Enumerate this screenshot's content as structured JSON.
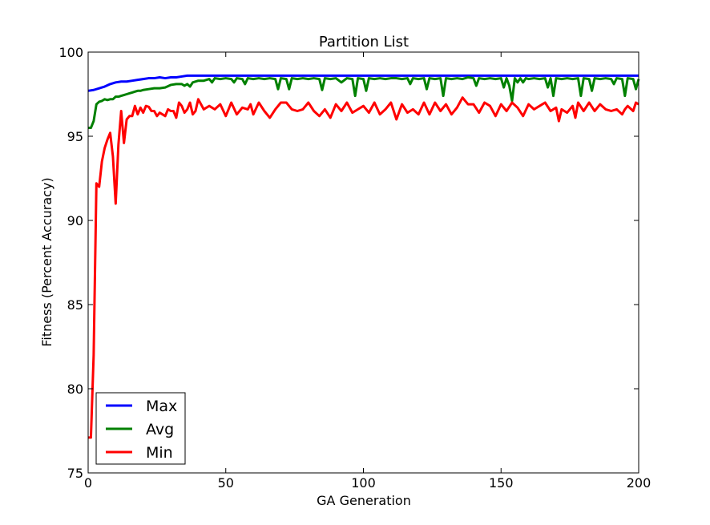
{
  "chart_data": {
    "type": "line",
    "title": "Partition List",
    "xlabel": "GA Generation",
    "ylabel": "Fitness (Percent Accuracy)",
    "xlim": [
      0,
      200
    ],
    "ylim": [
      75,
      100
    ],
    "xticks": [
      0,
      50,
      100,
      150,
      200
    ],
    "yticks": [
      75,
      80,
      85,
      90,
      95,
      100
    ],
    "grid": false,
    "legend": {
      "placement": "lower-left",
      "entries": [
        "Max",
        "Avg",
        "Min"
      ]
    },
    "series": [
      {
        "name": "Max",
        "color": "#0000ff",
        "x": [
          0,
          2,
          4,
          6,
          8,
          10,
          12,
          14,
          16,
          18,
          20,
          22,
          24,
          26,
          28,
          30,
          32,
          34,
          36,
          40,
          60,
          80,
          100,
          120,
          140,
          160,
          180,
          200
        ],
        "y": [
          97.7,
          97.75,
          97.85,
          97.95,
          98.1,
          98.2,
          98.25,
          98.25,
          98.3,
          98.35,
          98.4,
          98.45,
          98.45,
          98.5,
          98.45,
          98.5,
          98.5,
          98.55,
          98.6,
          98.6,
          98.6,
          98.6,
          98.6,
          98.6,
          98.6,
          98.6,
          98.6,
          98.6
        ]
      },
      {
        "name": "Avg",
        "color": "#008000",
        "x": [
          0,
          1,
          2,
          3,
          4,
          5,
          6,
          7,
          8,
          9,
          10,
          11,
          12,
          13,
          14,
          15,
          16,
          17,
          18,
          19,
          20,
          22,
          24,
          26,
          28,
          30,
          32,
          34,
          35,
          36,
          37,
          38,
          40,
          42,
          44,
          45,
          46,
          48,
          50,
          52,
          53,
          54,
          56,
          57,
          58,
          60,
          62,
          64,
          66,
          68,
          69,
          70,
          72,
          73,
          74,
          76,
          78,
          80,
          82,
          84,
          85,
          86,
          88,
          90,
          92,
          94,
          96,
          97,
          98,
          100,
          101,
          102,
          104,
          106,
          108,
          110,
          112,
          114,
          116,
          117,
          118,
          120,
          122,
          123,
          124,
          126,
          128,
          129,
          130,
          132,
          134,
          136,
          138,
          140,
          141,
          142,
          144,
          146,
          148,
          150,
          151,
          152,
          153,
          154,
          155,
          156,
          157,
          158,
          159,
          160,
          162,
          164,
          166,
          167,
          168,
          169,
          170,
          172,
          174,
          176,
          178,
          179,
          180,
          182,
          183,
          184,
          186,
          188,
          190,
          191,
          192,
          194,
          195,
          196,
          198,
          199,
          200
        ],
        "y": [
          95.5,
          95.5,
          95.9,
          96.9,
          97.05,
          97.1,
          97.2,
          97.15,
          97.2,
          97.2,
          97.35,
          97.35,
          97.4,
          97.45,
          97.5,
          97.55,
          97.6,
          97.65,
          97.7,
          97.7,
          97.75,
          97.8,
          97.85,
          97.85,
          97.9,
          98.05,
          98.1,
          98.1,
          98.0,
          98.1,
          97.95,
          98.2,
          98.3,
          98.3,
          98.4,
          98.2,
          98.45,
          98.4,
          98.45,
          98.4,
          98.2,
          98.45,
          98.4,
          98.1,
          98.45,
          98.4,
          98.45,
          98.4,
          98.45,
          98.4,
          97.8,
          98.45,
          98.4,
          97.8,
          98.45,
          98.4,
          98.45,
          98.4,
          98.45,
          98.4,
          97.75,
          98.45,
          98.4,
          98.45,
          98.2,
          98.45,
          98.4,
          97.4,
          98.45,
          98.4,
          97.7,
          98.45,
          98.4,
          98.45,
          98.4,
          98.45,
          98.45,
          98.4,
          98.45,
          98.1,
          98.45,
          98.4,
          98.45,
          97.8,
          98.45,
          98.4,
          98.45,
          97.4,
          98.45,
          98.4,
          98.45,
          98.4,
          98.5,
          98.45,
          98.0,
          98.45,
          98.4,
          98.45,
          98.4,
          98.45,
          97.9,
          98.45,
          98.0,
          97.1,
          98.45,
          98.2,
          98.45,
          98.2,
          98.45,
          98.4,
          98.45,
          98.4,
          98.45,
          97.9,
          98.45,
          97.4,
          98.45,
          98.4,
          98.45,
          98.4,
          98.45,
          97.4,
          98.45,
          98.4,
          97.7,
          98.45,
          98.4,
          98.45,
          98.4,
          98.1,
          98.45,
          98.4,
          97.4,
          98.45,
          98.4,
          97.8,
          98.4
        ]
      },
      {
        "name": "Min",
        "color": "#ff0000",
        "x": [
          0,
          1,
          2,
          3,
          4,
          5,
          6,
          7,
          8,
          9,
          10,
          11,
          12,
          13,
          14,
          15,
          16,
          17,
          18,
          19,
          20,
          21,
          22,
          23,
          24,
          25,
          26,
          27,
          28,
          29,
          30,
          31,
          32,
          33,
          34,
          35,
          36,
          37,
          38,
          39,
          40,
          42,
          44,
          46,
          48,
          50,
          51,
          52,
          54,
          56,
          58,
          59,
          60,
          62,
          64,
          66,
          68,
          70,
          72,
          74,
          76,
          78,
          80,
          82,
          84,
          86,
          88,
          90,
          92,
          94,
          96,
          98,
          100,
          102,
          104,
          106,
          108,
          110,
          112,
          114,
          116,
          118,
          120,
          122,
          124,
          126,
          128,
          130,
          132,
          134,
          136,
          138,
          140,
          142,
          144,
          146,
          148,
          150,
          152,
          154,
          156,
          158,
          160,
          162,
          164,
          166,
          168,
          170,
          171,
          172,
          174,
          176,
          177,
          178,
          180,
          182,
          184,
          186,
          188,
          190,
          192,
          194,
          195,
          196,
          198,
          199,
          200
        ],
        "y": [
          77.1,
          77.1,
          82.0,
          92.2,
          92.0,
          93.5,
          94.3,
          94.8,
          95.2,
          93.8,
          91.0,
          94.5,
          96.5,
          94.6,
          96.0,
          96.2,
          96.2,
          96.8,
          96.3,
          96.7,
          96.4,
          96.8,
          96.75,
          96.5,
          96.5,
          96.2,
          96.4,
          96.3,
          96.2,
          96.6,
          96.5,
          96.5,
          96.1,
          97.0,
          96.8,
          96.4,
          96.6,
          97.0,
          96.3,
          96.5,
          97.2,
          96.6,
          96.8,
          96.6,
          96.9,
          96.2,
          96.6,
          97.0,
          96.3,
          96.7,
          96.6,
          96.9,
          96.3,
          97.0,
          96.5,
          96.1,
          96.6,
          97.0,
          97.0,
          96.6,
          96.5,
          96.6,
          97.0,
          96.5,
          96.2,
          96.6,
          96.1,
          96.9,
          96.5,
          97.0,
          96.4,
          96.6,
          96.8,
          96.4,
          97.0,
          96.3,
          96.6,
          97.0,
          96.0,
          96.9,
          96.4,
          96.6,
          96.3,
          97.0,
          96.3,
          97.0,
          96.5,
          96.9,
          96.3,
          96.7,
          97.3,
          96.9,
          96.9,
          96.4,
          97.0,
          96.8,
          96.2,
          96.9,
          96.5,
          97.0,
          96.7,
          96.2,
          96.9,
          96.6,
          96.8,
          97.0,
          96.5,
          96.7,
          95.9,
          96.6,
          96.4,
          96.8,
          96.1,
          97.0,
          96.5,
          97.0,
          96.5,
          96.9,
          96.6,
          96.5,
          96.6,
          96.3,
          96.6,
          96.8,
          96.5,
          97.0,
          96.9
        ]
      }
    ]
  }
}
